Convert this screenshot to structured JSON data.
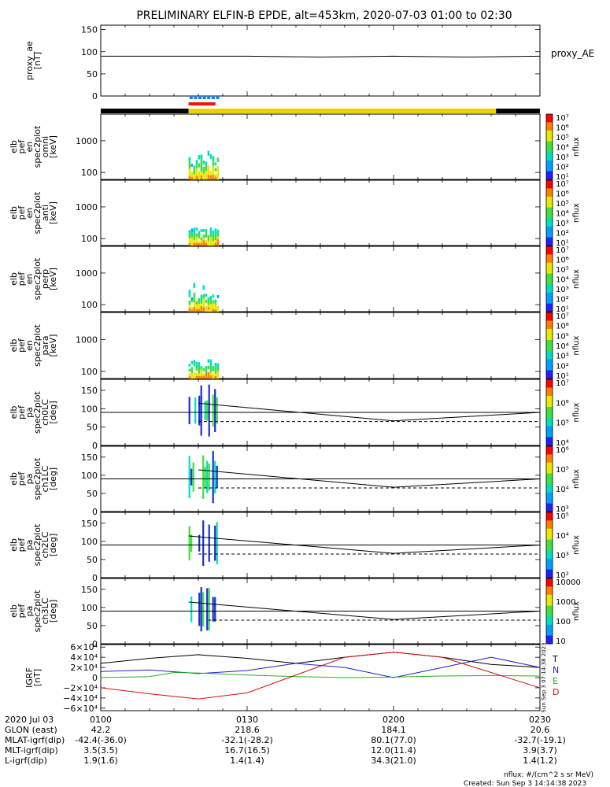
{
  "title": "PRELIMINARY ELFIN-B EPDE, alt=453km, 2020-07-03 01:00 to 02:30",
  "colors": {
    "black": "#000000",
    "blue": "#1f1fd0",
    "green": "#22b022",
    "red": "#d01010",
    "bar_yellow": "#f0d000",
    "bar_red": "#f01010",
    "bar_blue": "#1a7ee8"
  },
  "chart_data": [
    {
      "type": "line",
      "id": "proxy_ae",
      "ylabel": "proxy_ae\n[nT]",
      "side_label": "proxy_AE",
      "yticks": [
        "0",
        "50",
        "100",
        "150"
      ],
      "ylim": [
        0,
        160
      ],
      "x_minutes": [
        0,
        30,
        45,
        60,
        75,
        90
      ],
      "values": [
        90,
        90,
        88,
        90,
        88,
        90
      ]
    },
    {
      "type": "heatmap",
      "id": "en_spec_omni",
      "ylabel": "elb\npef\nen\nspec2plot\nomni\n[keV]",
      "yticks": [
        "100",
        "1000"
      ],
      "ylim": [
        60,
        7000
      ],
      "log": true,
      "colorbar_label": "nflux",
      "colorbar_ticks": [
        "10¹",
        "10²",
        "10³",
        "10⁴",
        "10⁵",
        "10⁶",
        "10⁷"
      ]
    },
    {
      "type": "heatmap",
      "id": "en_spec_anti",
      "ylabel": "elb\npef\nen\nspec2plot\nanti\n[keV]",
      "yticks": [
        "100",
        "1000"
      ],
      "ylim": [
        60,
        7000
      ],
      "log": true,
      "colorbar_label": "nflux",
      "colorbar_ticks": [
        "10¹",
        "10²",
        "10³",
        "10⁴",
        "10⁵",
        "10⁶",
        "10⁷"
      ]
    },
    {
      "type": "heatmap",
      "id": "en_spec_perp",
      "ylabel": "elb\npef\nen\nspec2plot\nperp\n[keV]",
      "yticks": [
        "100",
        "1000"
      ],
      "ylim": [
        60,
        7000
      ],
      "log": true,
      "colorbar_label": "nflux",
      "colorbar_ticks": [
        "10¹",
        "10²",
        "10³",
        "10⁴",
        "10⁵",
        "10⁶",
        "10⁷"
      ]
    },
    {
      "type": "heatmap",
      "id": "en_spec_para",
      "ylabel": "elb\npef\nen\nspec2plot\npara\n[keV]",
      "yticks": [
        "100",
        "1000"
      ],
      "ylim": [
        60,
        7000
      ],
      "log": true,
      "colorbar_label": "nflux",
      "colorbar_ticks": [
        "10¹",
        "10²",
        "10³",
        "10⁴",
        "10⁵",
        "10⁶",
        "10⁷"
      ]
    },
    {
      "type": "heatmap",
      "id": "pa_ch0",
      "ylabel": "elb\npef\npa\nspec2plot\nch0LC\n[deg]",
      "yticks": [
        "0",
        "50",
        "100",
        "150"
      ],
      "ylim": [
        0,
        180
      ],
      "colorbar_label": "nflux",
      "colorbar_ticks": [
        "10⁴",
        "10⁵",
        "10⁶",
        "10⁷"
      ],
      "lc_solid": [
        [
          20,
          115
        ],
        [
          60,
          67
        ],
        [
          90,
          90
        ]
      ],
      "lc_dashed": [
        [
          20,
          65
        ],
        [
          90,
          65
        ]
      ],
      "ref_line": 90
    },
    {
      "type": "heatmap",
      "id": "pa_ch1",
      "ylabel": "elb\npef\npa\nspec2plot\nch1LC\n[deg]",
      "yticks": [
        "0",
        "50",
        "100",
        "150"
      ],
      "ylim": [
        0,
        180
      ],
      "colorbar_label": "nflux",
      "colorbar_ticks": [
        "10³",
        "10⁴",
        "10⁵",
        "10⁶"
      ],
      "lc_solid": [
        [
          20,
          115
        ],
        [
          60,
          67
        ],
        [
          90,
          90
        ]
      ],
      "lc_dashed": [
        [
          20,
          65
        ],
        [
          90,
          65
        ]
      ],
      "ref_line": 90
    },
    {
      "type": "heatmap",
      "id": "pa_ch2",
      "ylabel": "elb\npef\npa\nspec2plot\nch2LC\n[deg]",
      "yticks": [
        "0",
        "50",
        "100",
        "150"
      ],
      "ylim": [
        0,
        180
      ],
      "colorbar_label": "nflux",
      "colorbar_ticks": [
        "10²",
        "10³",
        "10⁴",
        "10⁵"
      ],
      "lc_solid": [
        [
          18,
          115
        ],
        [
          60,
          67
        ],
        [
          90,
          90
        ]
      ],
      "lc_dashed": [
        [
          20,
          65
        ],
        [
          90,
          65
        ]
      ],
      "ref_line": 90
    },
    {
      "type": "heatmap",
      "id": "pa_ch3",
      "ylabel": "elb\npef\npa\nspec2plot\nch3LC\n[deg]",
      "yticks": [
        "0",
        "50",
        "100",
        "150"
      ],
      "ylim": [
        0,
        180
      ],
      "colorbar_label": "nflux",
      "colorbar_ticks": [
        "10",
        "100",
        "1000",
        "10000"
      ],
      "lc_solid": [
        [
          18,
          115
        ],
        [
          60,
          67
        ],
        [
          90,
          90
        ]
      ],
      "lc_dashed": [
        [
          22,
          65
        ],
        [
          90,
          65
        ]
      ],
      "ref_line": 90
    },
    {
      "type": "line",
      "id": "igrf",
      "ylabel": "IGRF\n[nT]",
      "yticks": [
        "−6×10⁴",
        "−4×10⁴",
        "−2×10⁴",
        "0",
        "2×10⁴",
        "4×10⁴",
        "6×10⁴"
      ],
      "ylim": [
        -65000,
        65000
      ],
      "series": [
        {
          "name": "T",
          "color": "#000000",
          "x_minutes": [
            0,
            10,
            20,
            30,
            40,
            50,
            60,
            70,
            80,
            90
          ],
          "values": [
            28000,
            38000,
            45000,
            38000,
            28000,
            40000,
            50000,
            40000,
            26000,
            20000
          ]
        },
        {
          "name": "N",
          "color": "#1f1fd0",
          "x_minutes": [
            0,
            10,
            20,
            30,
            40,
            50,
            60,
            70,
            80,
            90
          ],
          "values": [
            12000,
            15000,
            8000,
            14000,
            28000,
            20000,
            0,
            20000,
            40000,
            20000
          ]
        },
        {
          "name": "E",
          "color": "#22b022",
          "x_minutes": [
            0,
            10,
            15,
            20,
            30,
            40,
            50,
            60,
            70,
            80,
            90
          ],
          "values": [
            0,
            2000,
            10000,
            9000,
            5000,
            2000,
            0,
            1000,
            3000,
            4000,
            3000
          ]
        },
        {
          "name": "D",
          "color": "#d01010",
          "x_minutes": [
            0,
            10,
            20,
            30,
            40,
            50,
            60,
            70,
            80,
            90
          ],
          "values": [
            -20000,
            -32000,
            -42000,
            -30000,
            5000,
            40000,
            50000,
            40000,
            10000,
            -20000
          ]
        }
      ]
    }
  ],
  "xaxis": {
    "rows": [
      {
        "label": "2020 Jul 03",
        "values": [
          "0100",
          "0130",
          "0200",
          "0230"
        ]
      },
      {
        "label": "GLON (east)",
        "values": [
          "42.2",
          "218.6",
          "184.1",
          "20.6"
        ]
      },
      {
        "label": "MLAT-igrf(dip)",
        "values": [
          "-42.4(-36.0)",
          "-32.1(-28.2)",
          "80.1(77.0)",
          "-32.7(-19.1)"
        ]
      },
      {
        "label": "MLT-igrf(dip)",
        "values": [
          "3.5(3.5)",
          "16.7(16.5)",
          "12.0(11.4)",
          "3.9(3.7)"
        ]
      },
      {
        "label": "L-igrf(dip)",
        "values": [
          "1.9(1.6)",
          "1.4(1.4)",
          "34.3(21.0)",
          "1.4(1.2)"
        ]
      }
    ],
    "minutes": [
      0,
      30,
      60,
      90
    ]
  },
  "footer": {
    "units": "nflux: #/(cm^2 s sr MeV)",
    "created": "Created: Sun Sep  3 14:14:38 2023"
  },
  "side_stamp": "Sun Sep  3 07:14:38 2023"
}
